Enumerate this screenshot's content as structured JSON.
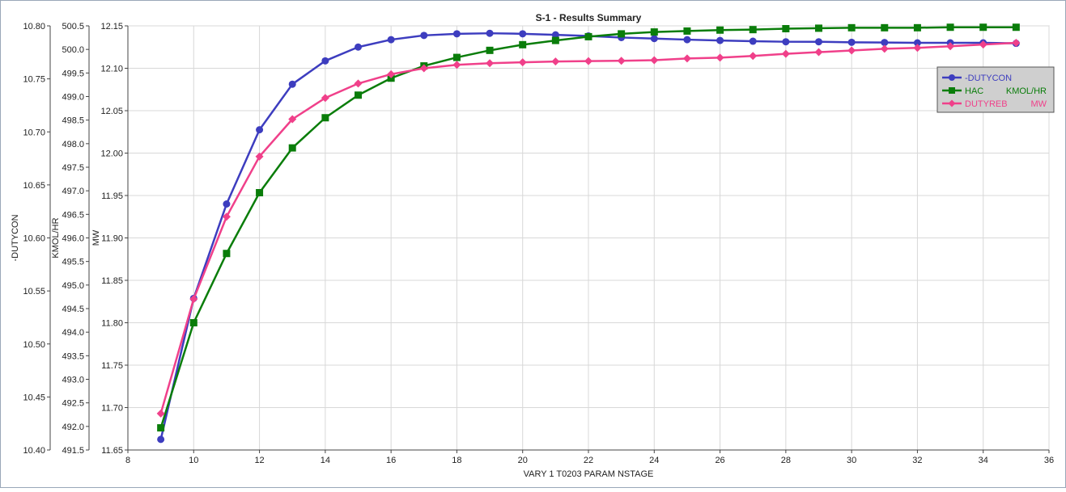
{
  "chart_data": {
    "type": "line",
    "title": "S-1 - Results Summary",
    "xlabel": "VARY   1 T0203    PARAM    NSTAGE",
    "xlim": [
      8,
      36
    ],
    "xticks": [
      8,
      10,
      12,
      14,
      16,
      18,
      20,
      22,
      24,
      26,
      28,
      30,
      32,
      34,
      36
    ],
    "grid": true,
    "legend_position": "top-right",
    "y_axes": [
      {
        "id": "dutycon",
        "label": "-DUTYCON",
        "ylim": [
          10.4,
          10.8
        ],
        "ticks": [
          "10.40",
          "10.45",
          "10.50",
          "10.55",
          "10.60",
          "10.65",
          "10.70",
          "10.75",
          "10.80"
        ]
      },
      {
        "id": "kmol",
        "label": "KMOL/HR",
        "ylim": [
          491.5,
          500.5
        ],
        "ticks": [
          "491.5",
          "492.0",
          "492.5",
          "493.0",
          "493.5",
          "494.0",
          "494.5",
          "495.0",
          "495.5",
          "496.0",
          "496.5",
          "497.0",
          "497.5",
          "498.0",
          "498.5",
          "499.0",
          "499.5",
          "500.0",
          "500.5"
        ]
      },
      {
        "id": "mw",
        "label": "MW",
        "ylim": [
          11.65,
          12.15
        ],
        "ticks": [
          "11.65",
          "11.70",
          "11.75",
          "11.80",
          "11.85",
          "11.90",
          "11.95",
          "12.00",
          "12.05",
          "12.10",
          "12.15"
        ]
      }
    ],
    "series": [
      {
        "name": "-DUTYCON",
        "unit": "",
        "axis": "dutycon",
        "color": "#3d3dbf",
        "marker": "circle",
        "x": [
          9,
          10,
          11,
          12,
          13,
          14,
          15,
          16,
          17,
          18,
          19,
          20,
          21,
          22,
          23,
          24,
          25,
          26,
          27,
          28,
          29,
          30,
          31,
          32,
          33,
          34,
          35
        ],
        "values": [
          10.41,
          10.543,
          10.632,
          10.702,
          10.745,
          10.767,
          10.78,
          10.787,
          10.791,
          10.7925,
          10.793,
          10.7925,
          10.7915,
          10.7905,
          10.789,
          10.788,
          10.787,
          10.7862,
          10.7855,
          10.785,
          10.785,
          10.7845,
          10.7843,
          10.784,
          10.784,
          10.784,
          10.7835
        ]
      },
      {
        "name": "HAC",
        "unit": "KMOL/HR",
        "axis": "kmol",
        "color": "#0a7d0a",
        "marker": "square",
        "x": [
          9,
          10,
          11,
          12,
          13,
          14,
          15,
          16,
          17,
          18,
          19,
          20,
          21,
          22,
          23,
          24,
          25,
          26,
          27,
          28,
          29,
          30,
          31,
          32,
          33,
          34,
          35
        ],
        "values": [
          491.97,
          494.2,
          495.67,
          496.96,
          497.91,
          498.55,
          499.03,
          499.39,
          499.65,
          499.83,
          499.98,
          500.1,
          500.19,
          500.27,
          500.33,
          500.37,
          500.39,
          500.41,
          500.42,
          500.44,
          500.45,
          500.46,
          500.46,
          500.46,
          500.47,
          500.47,
          500.47
        ]
      },
      {
        "name": "DUTYREB",
        "unit": "MW",
        "axis": "mw",
        "color": "#f0408a",
        "marker": "diamond",
        "x": [
          9,
          10,
          11,
          12,
          13,
          14,
          15,
          16,
          17,
          18,
          19,
          20,
          21,
          22,
          23,
          24,
          25,
          26,
          27,
          28,
          29,
          30,
          31,
          32,
          33,
          34,
          35
        ],
        "values": [
          11.693,
          11.828,
          11.925,
          11.996,
          12.04,
          12.065,
          12.082,
          12.093,
          12.1,
          12.104,
          12.106,
          12.107,
          12.108,
          12.1085,
          12.1088,
          12.1095,
          12.1115,
          12.1125,
          12.1145,
          12.117,
          12.119,
          12.121,
          12.123,
          12.124,
          12.126,
          12.128,
          12.13
        ]
      }
    ]
  }
}
